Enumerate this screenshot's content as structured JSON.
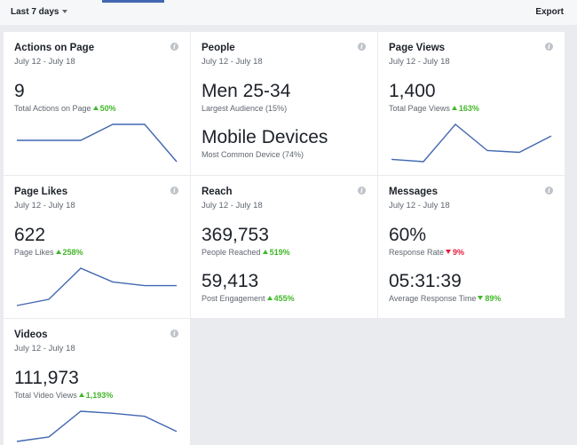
{
  "header": {
    "range_label": "Last 7 days",
    "export_label": "Export"
  },
  "cards": {
    "actions": {
      "title": "Actions on Page",
      "date": "July 12 - July 18",
      "value": "9",
      "label": "Total Actions on Page",
      "delta": "50%",
      "trend": [
        2,
        2,
        2,
        8,
        8,
        -6
      ]
    },
    "people": {
      "title": "People",
      "date": "July 12 - July 18",
      "value1": "Men 25-34",
      "label1": "Largest Audience (15%)",
      "value2": "Mobile Devices",
      "label2": "Most Common Device (74%)"
    },
    "views": {
      "title": "Page Views",
      "date": "July 12 - July 18",
      "value": "1,400",
      "label": "Total Page Views",
      "delta": "163%",
      "trend": [
        180,
        176,
        240,
        195,
        192,
        220
      ]
    },
    "likes": {
      "title": "Page Likes",
      "date": "July 12 - July 18",
      "value": "622",
      "label": "Page Likes",
      "delta": "258%",
      "trend": [
        60,
        70,
        120,
        98,
        92,
        92
      ]
    },
    "reach": {
      "title": "Reach",
      "date": "July 12 - July 18",
      "value1": "369,753",
      "label1": "People Reached",
      "delta1": "519%",
      "value2": "59,413",
      "label2": "Post Engagement",
      "delta2": "455%"
    },
    "messages": {
      "title": "Messages",
      "date": "July 12 - July 18",
      "value1": "60%",
      "label1": "Response Rate",
      "delta1": "9%",
      "value2": "05:31:39",
      "label2": "Average Response Time",
      "delta2": "89%"
    },
    "videos": {
      "title": "Videos",
      "date": "July 12 - July 18",
      "value": "111,973",
      "label": "Total Video Views",
      "delta": "1,193%",
      "trend": [
        40,
        58,
        160,
        152,
        140,
        80
      ]
    }
  },
  "colors": {
    "accent": "#4267b2",
    "up": "#42b72a",
    "down": "#e41e3f"
  }
}
